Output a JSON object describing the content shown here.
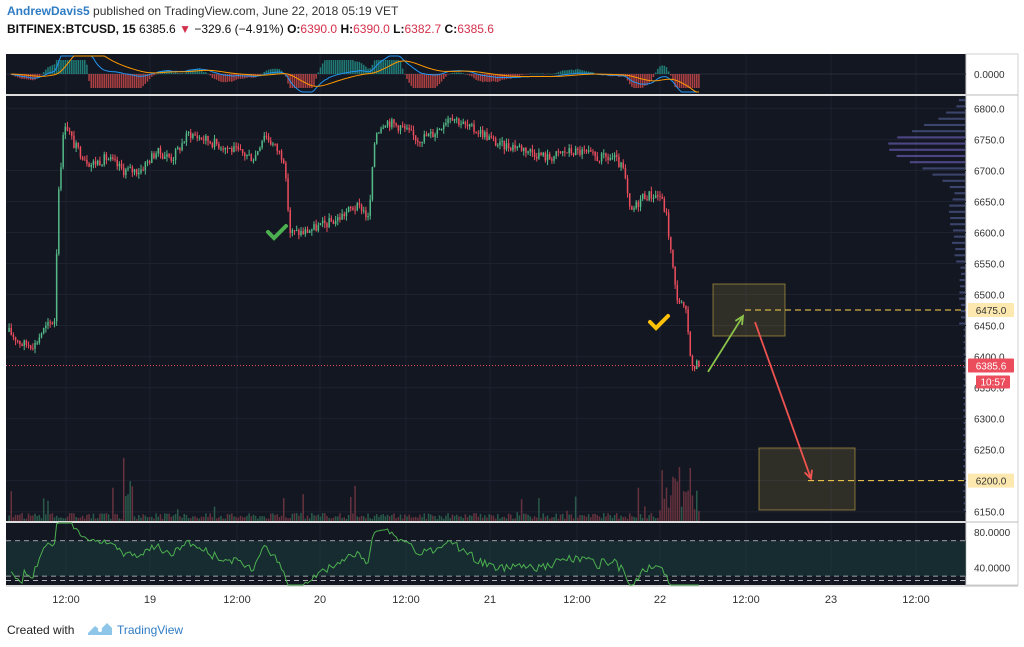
{
  "header": {
    "username": "AndrewDavis5",
    "published_text": "published on TradingView.com, June 22, 2018 05:19 VET",
    "symbol": "BITFINEX:BTCUSD, 15",
    "last": "6385.6",
    "change": "−329.6 (−4.91%)",
    "open_label": "O:",
    "open": "6390.0",
    "high_label": "H:",
    "high": "6390.0",
    "low_label": "L:",
    "low": "6382.7",
    "close_label": "C:",
    "close": "6385.6"
  },
  "footer": {
    "created_with": "Created with",
    "brand": "TradingView"
  },
  "colors": {
    "background": "#131722",
    "bull": "#53b987",
    "bear": "#eb4d5c",
    "grid": "#1e2230",
    "macd": "#2196f3",
    "signal": "#ff9800",
    "rsi": "#4caf50",
    "target_box": "#ffd54f",
    "last_price": "#eb4d5c"
  },
  "chart_data": {
    "type": "candlestick",
    "symbol": "BITFINEX:BTCUSD",
    "interval": "15",
    "price_axis": {
      "ticks": [
        "6800.0",
        "6750.0",
        "6700.0",
        "6650.0",
        "6600.0",
        "6550.0",
        "6500.0",
        "6450.0",
        "6400.0",
        "6350.0",
        "6300.0",
        "6250.0",
        "6200.0",
        "6150.0"
      ],
      "range": [
        6135,
        6820
      ]
    },
    "time_axis": {
      "ticks": [
        "12:00",
        "19",
        "12:00",
        "20",
        "12:00",
        "21",
        "12:00",
        "22",
        "12:00",
        "23",
        "12:00"
      ]
    },
    "price_path": [
      [
        0,
        6440
      ],
      [
        0.4,
        6420
      ],
      [
        0.8,
        6420
      ],
      [
        1.0,
        6440
      ],
      [
        1.4,
        6460
      ],
      [
        1.5,
        6660
      ],
      [
        1.7,
        6780
      ],
      [
        2.0,
        6740
      ],
      [
        2.5,
        6710
      ],
      [
        3.0,
        6720
      ],
      [
        3.5,
        6700
      ],
      [
        4.0,
        6700
      ],
      [
        4.5,
        6730
      ],
      [
        5.0,
        6720
      ],
      [
        5.5,
        6760
      ],
      [
        6.0,
        6750
      ],
      [
        6.5,
        6740
      ],
      [
        7.0,
        6730
      ],
      [
        7.5,
        6720
      ],
      [
        7.8,
        6760
      ],
      [
        8.4,
        6720
      ],
      [
        8.6,
        6600
      ],
      [
        9.0,
        6600
      ],
      [
        9.5,
        6610
      ],
      [
        10.0,
        6620
      ],
      [
        10.5,
        6640
      ],
      [
        10.8,
        6640
      ],
      [
        11.0,
        6620
      ],
      [
        11.2,
        6760
      ],
      [
        11.5,
        6780
      ],
      [
        12.0,
        6770
      ],
      [
        12.5,
        6750
      ],
      [
        13.0,
        6760
      ],
      [
        13.5,
        6790
      ],
      [
        14.0,
        6770
      ],
      [
        14.5,
        6760
      ],
      [
        15.0,
        6740
      ],
      [
        15.5,
        6740
      ],
      [
        16.0,
        6730
      ],
      [
        16.5,
        6720
      ],
      [
        17.0,
        6730
      ],
      [
        17.5,
        6730
      ],
      [
        18.0,
        6720
      ],
      [
        18.5,
        6720
      ],
      [
        18.8,
        6700
      ],
      [
        19.0,
        6630
      ],
      [
        19.4,
        6660
      ],
      [
        19.9,
        6660
      ],
      [
        20.1,
        6630
      ],
      [
        20.4,
        6500
      ],
      [
        20.6,
        6480
      ],
      [
        20.7,
        6470
      ],
      [
        20.9,
        6380
      ],
      [
        21.1,
        6390
      ]
    ],
    "macd_axis_label": "0.0000",
    "rsi_axis_ticks": [
      "80.0000",
      "40.0000"
    ],
    "annotations": [
      {
        "type": "check-mark",
        "color": "#4caf50",
        "near": "19 → 20 drop"
      },
      {
        "type": "check-mark",
        "color": "#ffc107",
        "near": "22 breakdown"
      },
      {
        "type": "target-box",
        "price": 6475.0,
        "label": "6475.0"
      },
      {
        "type": "target-box",
        "price": 6200.0,
        "label": "6200.0"
      },
      {
        "type": "arrow",
        "color": "#8bc34a",
        "from_price": 6385,
        "to_price": 6475
      },
      {
        "type": "arrow",
        "color": "#ef5350",
        "from_price": 6475,
        "to_price": 6200
      }
    ],
    "last_price_label": "6385.6",
    "countdown_label": "10:57"
  }
}
